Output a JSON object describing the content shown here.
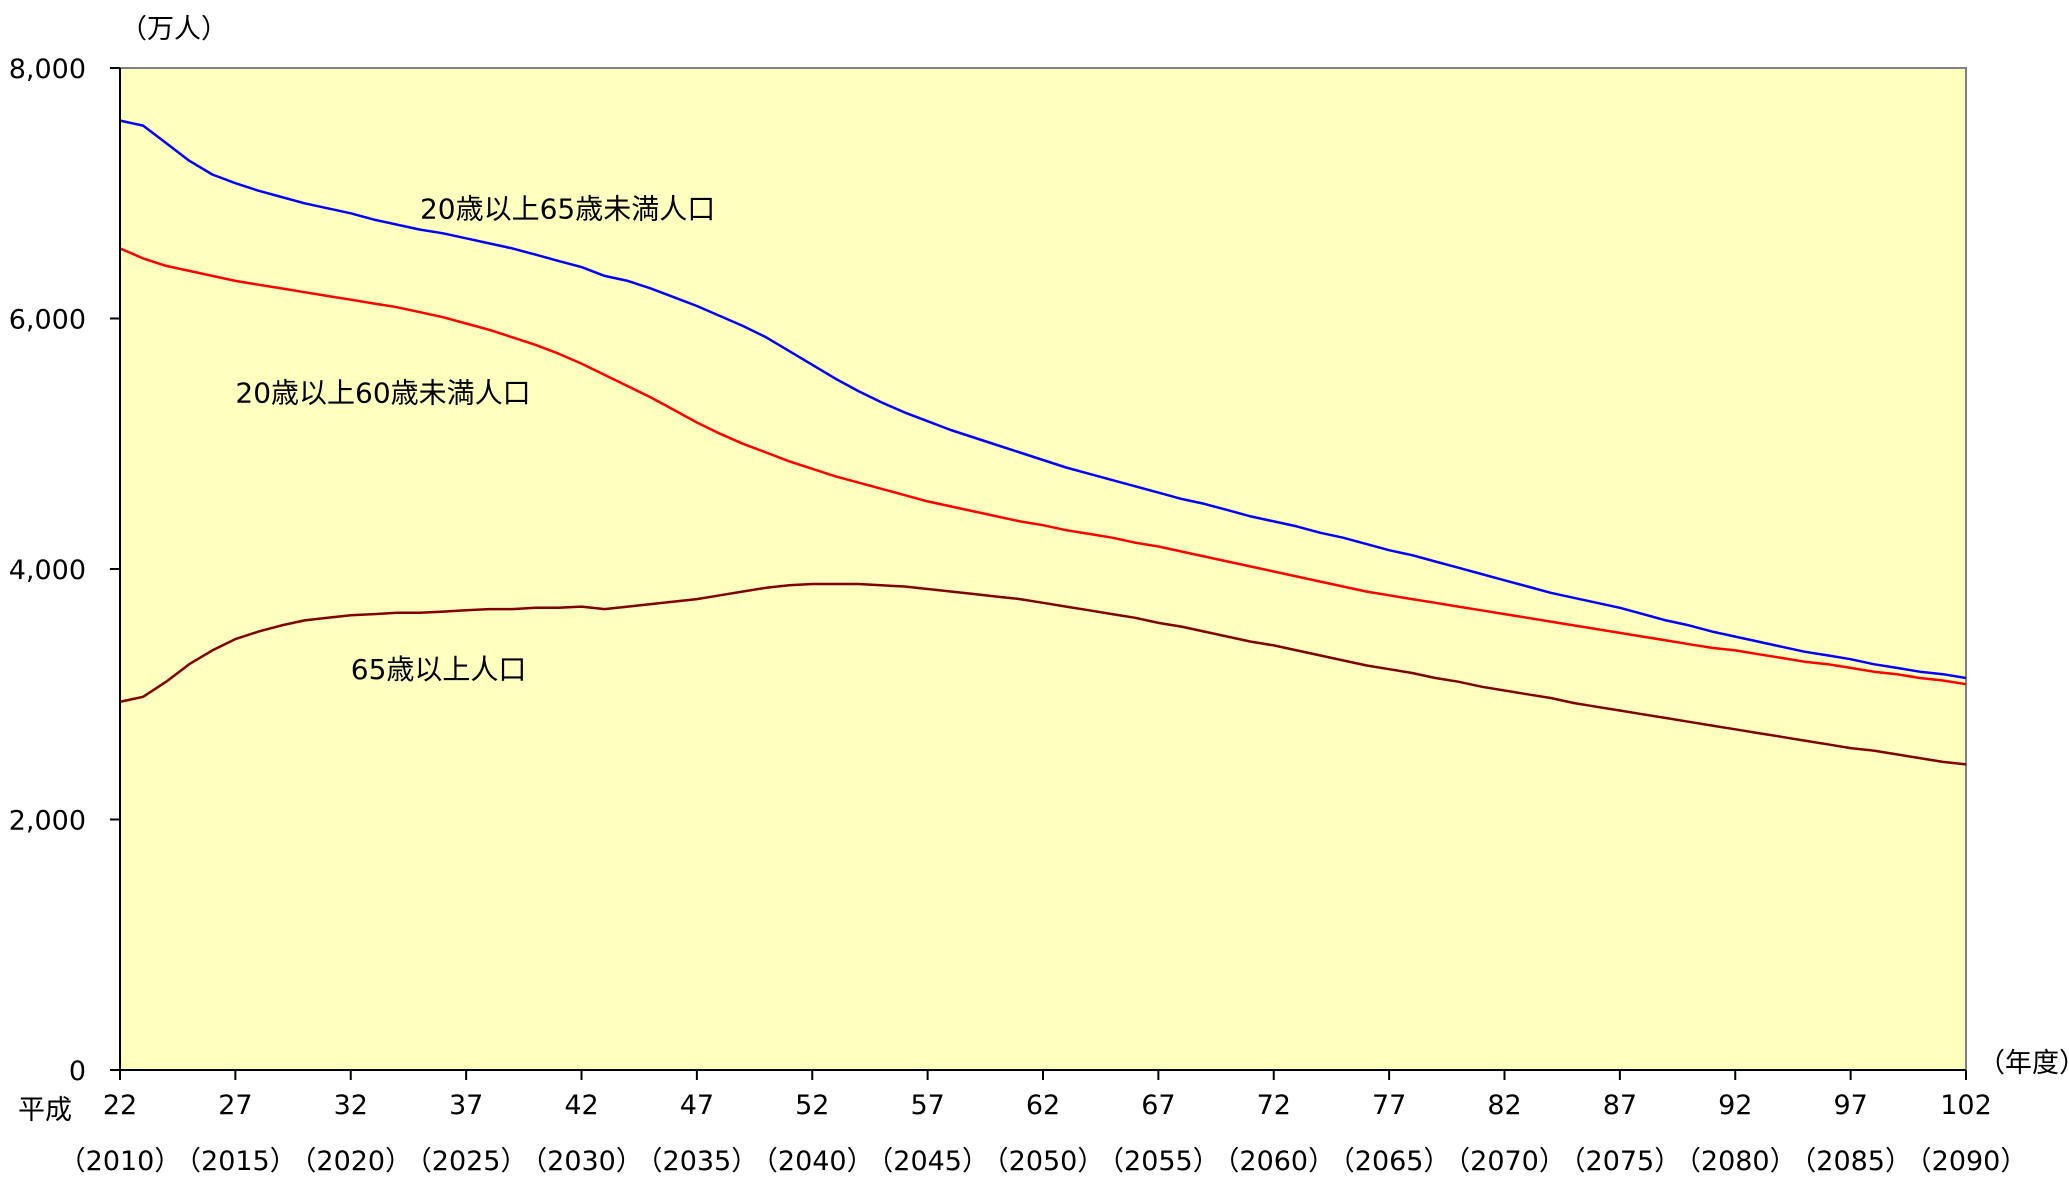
{
  "chart_data": {
    "type": "line",
    "y_unit": "（万人）",
    "x_unit": "（年度）",
    "era_label": "平成",
    "ylim": [
      0,
      8000
    ],
    "y_ticks": [
      "8,000",
      "6,000",
      "4,000",
      "2,000",
      "0"
    ],
    "y_tick_values": [
      8000,
      6000,
      4000,
      2000,
      0
    ],
    "xlim": [
      22,
      102
    ],
    "x_ticks": [
      {
        "value": 22,
        "label": "22",
        "western": "（2010）"
      },
      {
        "value": 27,
        "label": "27",
        "western": "（2015）"
      },
      {
        "value": 32,
        "label": "32",
        "western": "（2020）"
      },
      {
        "value": 37,
        "label": "37",
        "western": "（2025）"
      },
      {
        "value": 42,
        "label": "42",
        "western": "（2030）"
      },
      {
        "value": 47,
        "label": "47",
        "western": "（2035）"
      },
      {
        "value": 52,
        "label": "52",
        "western": "（2040）"
      },
      {
        "value": 57,
        "label": "57",
        "western": "（2045）"
      },
      {
        "value": 62,
        "label": "62",
        "western": "（2050）"
      },
      {
        "value": 67,
        "label": "67",
        "western": "（2055）"
      },
      {
        "value": 72,
        "label": "72",
        "western": "（2060）"
      },
      {
        "value": 77,
        "label": "77",
        "western": "（2065）"
      },
      {
        "value": 82,
        "label": "82",
        "western": "（2070）"
      },
      {
        "value": 87,
        "label": "87",
        "western": "（2075）"
      },
      {
        "value": 92,
        "label": "92",
        "western": "（2080）"
      },
      {
        "value": 97,
        "label": "97",
        "western": "（2085）"
      },
      {
        "value": 102,
        "label": "102",
        "western": "（2090）"
      }
    ],
    "background_color": "#FFFFC0",
    "grid": false,
    "series": [
      {
        "name": "20歳以上65歳未満人口",
        "color": "#0000FF",
        "x": [
          22,
          23,
          24,
          25,
          26,
          27,
          28,
          29,
          30,
          31,
          32,
          33,
          34,
          35,
          36,
          37,
          38,
          39,
          40,
          41,
          42,
          43,
          44,
          45,
          46,
          47,
          48,
          49,
          50,
          51,
          52,
          53,
          54,
          55,
          56,
          57,
          58,
          59,
          60,
          61,
          62,
          63,
          64,
          65,
          66,
          67,
          68,
          69,
          70,
          71,
          72,
          73,
          74,
          75,
          76,
          77,
          78,
          79,
          80,
          81,
          82,
          83,
          84,
          85,
          86,
          87,
          88,
          89,
          90,
          91,
          92,
          93,
          94,
          95,
          96,
          97,
          98,
          99,
          100,
          101,
          102
        ],
        "values": [
          7580,
          7540,
          7400,
          7260,
          7150,
          7080,
          7020,
          6970,
          6920,
          6880,
          6840,
          6790,
          6750,
          6710,
          6680,
          6640,
          6600,
          6560,
          6510,
          6460,
          6410,
          6340,
          6300,
          6240,
          6170,
          6100,
          6020,
          5940,
          5850,
          5740,
          5630,
          5520,
          5420,
          5330,
          5250,
          5180,
          5110,
          5050,
          4990,
          4930,
          4870,
          4810,
          4760,
          4710,
          4660,
          4610,
          4560,
          4520,
          4470,
          4420,
          4380,
          4340,
          4290,
          4250,
          4200,
          4150,
          4110,
          4060,
          4010,
          3960,
          3910,
          3860,
          3810,
          3770,
          3730,
          3690,
          3640,
          3590,
          3550,
          3500,
          3460,
          3420,
          3380,
          3340,
          3310,
          3280,
          3240,
          3210,
          3180,
          3160,
          3130
        ]
      },
      {
        "name": "20歳以上60歳未満人口",
        "color": "#FF0000",
        "x": [
          22,
          23,
          24,
          25,
          26,
          27,
          28,
          29,
          30,
          31,
          32,
          33,
          34,
          35,
          36,
          37,
          38,
          39,
          40,
          41,
          42,
          43,
          44,
          45,
          46,
          47,
          48,
          49,
          50,
          51,
          52,
          53,
          54,
          55,
          56,
          57,
          58,
          59,
          60,
          61,
          62,
          63,
          64,
          65,
          66,
          67,
          68,
          69,
          70,
          71,
          72,
          73,
          74,
          75,
          76,
          77,
          78,
          79,
          80,
          81,
          82,
          83,
          84,
          85,
          86,
          87,
          88,
          89,
          90,
          91,
          92,
          93,
          94,
          95,
          96,
          97,
          98,
          99,
          100,
          101,
          102
        ],
        "values": [
          6560,
          6480,
          6420,
          6380,
          6340,
          6300,
          6270,
          6240,
          6210,
          6180,
          6150,
          6120,
          6090,
          6050,
          6010,
          5960,
          5910,
          5850,
          5790,
          5720,
          5640,
          5550,
          5460,
          5370,
          5270,
          5170,
          5080,
          5000,
          4930,
          4860,
          4800,
          4740,
          4690,
          4640,
          4590,
          4540,
          4500,
          4460,
          4420,
          4380,
          4350,
          4310,
          4280,
          4250,
          4210,
          4180,
          4140,
          4100,
          4060,
          4020,
          3980,
          3940,
          3900,
          3860,
          3820,
          3790,
          3760,
          3730,
          3700,
          3670,
          3640,
          3610,
          3580,
          3550,
          3520,
          3490,
          3460,
          3430,
          3400,
          3370,
          3350,
          3320,
          3290,
          3260,
          3240,
          3210,
          3180,
          3160,
          3130,
          3110,
          3080
        ]
      },
      {
        "name": "65歳以上人口",
        "color": "#800000",
        "x": [
          22,
          23,
          24,
          25,
          26,
          27,
          28,
          29,
          30,
          31,
          32,
          33,
          34,
          35,
          36,
          37,
          38,
          39,
          40,
          41,
          42,
          43,
          44,
          45,
          46,
          47,
          48,
          49,
          50,
          51,
          52,
          53,
          54,
          55,
          56,
          57,
          58,
          59,
          60,
          61,
          62,
          63,
          64,
          65,
          66,
          67,
          68,
          69,
          70,
          71,
          72,
          73,
          74,
          75,
          76,
          77,
          78,
          79,
          80,
          81,
          82,
          83,
          84,
          85,
          86,
          87,
          88,
          89,
          90,
          91,
          92,
          93,
          94,
          95,
          96,
          97,
          98,
          99,
          100,
          101,
          102
        ],
        "values": [
          2940,
          2980,
          3100,
          3240,
          3350,
          3440,
          3500,
          3550,
          3590,
          3610,
          3630,
          3640,
          3650,
          3650,
          3660,
          3670,
          3680,
          3680,
          3690,
          3690,
          3700,
          3680,
          3700,
          3720,
          3740,
          3760,
          3790,
          3820,
          3850,
          3870,
          3880,
          3880,
          3880,
          3870,
          3860,
          3840,
          3820,
          3800,
          3780,
          3760,
          3730,
          3700,
          3670,
          3640,
          3610,
          3570,
          3540,
          3500,
          3460,
          3420,
          3390,
          3350,
          3310,
          3270,
          3230,
          3200,
          3170,
          3130,
          3100,
          3060,
          3030,
          3000,
          2970,
          2930,
          2900,
          2870,
          2840,
          2810,
          2780,
          2750,
          2720,
          2690,
          2660,
          2630,
          2600,
          2570,
          2550,
          2520,
          2490,
          2460,
          2440
        ]
      }
    ],
    "series_labels": [
      {
        "text": "20歳以上65歳未満人口",
        "anchor_x": 35,
        "anchor_y": 6800
      },
      {
        "text": "20歳以上60歳未満人口",
        "anchor_x": 27,
        "anchor_y": 5330
      },
      {
        "text": "65歳以上人口",
        "anchor_x": 32,
        "anchor_y": 3120
      }
    ]
  }
}
